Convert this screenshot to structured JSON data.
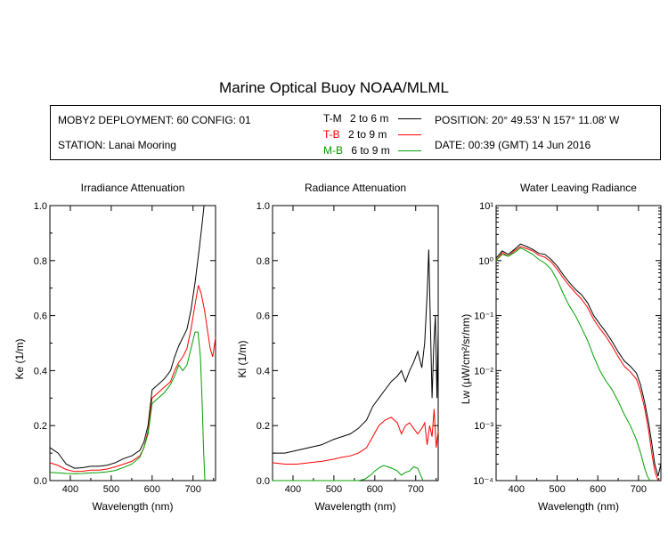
{
  "figure": {
    "title": "Marine Optical Buoy NOAA/MLML",
    "info": {
      "deployment": "MOBY2 DEPLOYMENT: 60 CONFIG: 01",
      "station": "STATION: Lanai Mooring",
      "position": "POSITION: 20° 49.53' N   157° 11.08' W",
      "date": "DATE: 00:39 (GMT) 14 Jun 2016"
    },
    "legend": [
      {
        "label": "T-M",
        "depth": "2 to 6  m",
        "color": "#000000"
      },
      {
        "label": "T-B",
        "depth": "2 to 9  m",
        "color": "#ff0000"
      },
      {
        "label": "M-B",
        "depth": "6 to 9  m",
        "color": "#00a000"
      }
    ]
  },
  "chart_data": [
    {
      "type": "line",
      "title": "Irradiance Attenuation",
      "xlabel": "Wavelength (nm)",
      "ylabel": "Ke  (1/m)",
      "xlim": [
        350,
        755
      ],
      "ylim": [
        0,
        1.0
      ],
      "xticks": [
        400,
        500,
        600,
        700
      ],
      "yticks": [
        0.0,
        0.2,
        0.4,
        0.6,
        0.8,
        1.0
      ],
      "ytick_labels": [
        "0.0",
        "0.2",
        "0.4",
        "0.6",
        "0.8",
        "1.0"
      ],
      "series": [
        {
          "name": "T-M",
          "color": "#000000",
          "x": [
            350,
            370,
            390,
            410,
            430,
            450,
            470,
            490,
            510,
            530,
            550,
            570,
            580,
            590,
            600,
            615,
            630,
            645,
            655,
            665,
            675,
            685,
            695,
            705,
            715,
            722,
            727
          ],
          "y": [
            0.12,
            0.1,
            0.06,
            0.045,
            0.047,
            0.052,
            0.052,
            0.056,
            0.065,
            0.08,
            0.09,
            0.11,
            0.14,
            0.2,
            0.33,
            0.35,
            0.37,
            0.4,
            0.45,
            0.49,
            0.52,
            0.55,
            0.62,
            0.72,
            0.84,
            0.93,
            1.0
          ]
        },
        {
          "name": "T-B",
          "color": "#ff0000",
          "x": [
            350,
            370,
            390,
            410,
            430,
            450,
            470,
            490,
            510,
            530,
            550,
            570,
            580,
            590,
            600,
            615,
            630,
            645,
            655,
            665,
            675,
            685,
            695,
            705,
            713,
            720,
            728,
            735,
            742,
            748,
            755
          ],
          "y": [
            0.065,
            0.055,
            0.04,
            0.033,
            0.034,
            0.038,
            0.038,
            0.042,
            0.05,
            0.06,
            0.07,
            0.09,
            0.12,
            0.18,
            0.3,
            0.32,
            0.34,
            0.36,
            0.4,
            0.43,
            0.45,
            0.48,
            0.55,
            0.64,
            0.71,
            0.68,
            0.62,
            0.55,
            0.48,
            0.45,
            0.52
          ]
        },
        {
          "name": "M-B",
          "color": "#00a000",
          "x": [
            350,
            370,
            390,
            410,
            430,
            450,
            470,
            490,
            510,
            530,
            550,
            570,
            580,
            590,
            600,
            615,
            630,
            645,
            655,
            665,
            675,
            685,
            695,
            705,
            712,
            718,
            722,
            726,
            729
          ],
          "y": [
            0.03,
            0.028,
            0.026,
            0.025,
            0.026,
            0.028,
            0.029,
            0.032,
            0.037,
            0.048,
            0.06,
            0.085,
            0.12,
            0.17,
            0.28,
            0.3,
            0.32,
            0.35,
            0.38,
            0.42,
            0.4,
            0.42,
            0.48,
            0.54,
            0.54,
            0.45,
            0.3,
            0.1,
            0.0
          ]
        }
      ]
    },
    {
      "type": "line",
      "title": "Radiance Attenuation",
      "xlabel": "Wavelength (nm)",
      "ylabel": "Kl  (1/m)",
      "xlim": [
        350,
        755
      ],
      "ylim": [
        0,
        1.0
      ],
      "xticks": [
        400,
        500,
        600,
        700
      ],
      "yticks": [
        0.0,
        0.2,
        0.4,
        0.6,
        0.8,
        1.0
      ],
      "ytick_labels": [
        "0.0",
        "0.2",
        "0.4",
        "0.6",
        "0.8",
        "1.0"
      ],
      "series": [
        {
          "name": "T-M",
          "color": "#000000",
          "x": [
            350,
            380,
            410,
            440,
            470,
            500,
            520,
            540,
            560,
            580,
            595,
            610,
            625,
            640,
            655,
            665,
            675,
            685,
            695,
            705,
            715,
            722,
            728,
            732,
            736,
            740,
            744,
            748,
            752,
            755
          ],
          "y": [
            0.1,
            0.1,
            0.11,
            0.12,
            0.13,
            0.15,
            0.16,
            0.17,
            0.19,
            0.22,
            0.27,
            0.3,
            0.33,
            0.36,
            0.38,
            0.4,
            0.36,
            0.4,
            0.43,
            0.47,
            0.41,
            0.5,
            0.68,
            0.84,
            0.56,
            0.3,
            0.48,
            0.6,
            0.3,
            0.55
          ]
        },
        {
          "name": "T-B",
          "color": "#ff0000",
          "x": [
            350,
            380,
            410,
            440,
            470,
            500,
            520,
            540,
            560,
            580,
            595,
            610,
            625,
            640,
            655,
            665,
            675,
            685,
            695,
            705,
            715,
            722,
            728,
            734,
            740,
            745,
            750,
            755
          ],
          "y": [
            0.065,
            0.06,
            0.06,
            0.065,
            0.07,
            0.078,
            0.085,
            0.09,
            0.1,
            0.12,
            0.16,
            0.2,
            0.22,
            0.23,
            0.21,
            0.17,
            0.2,
            0.21,
            0.19,
            0.17,
            0.19,
            0.21,
            0.13,
            0.2,
            0.16,
            0.26,
            0.12,
            0.18
          ]
        },
        {
          "name": "M-B",
          "color": "#00a000",
          "x": [
            350,
            380,
            410,
            440,
            470,
            500,
            520,
            540,
            560,
            575,
            590,
            600,
            612,
            622,
            632,
            642,
            655,
            665,
            675,
            685,
            695,
            705,
            712,
            718
          ],
          "y": [
            0.0,
            0.0,
            0.0,
            0.0,
            0.0,
            0.0,
            0.0,
            0.0,
            0.0,
            0.005,
            0.02,
            0.035,
            0.048,
            0.055,
            0.05,
            0.045,
            0.035,
            0.02,
            0.03,
            0.035,
            0.05,
            0.045,
            0.02,
            0.0
          ]
        }
      ]
    },
    {
      "type": "line",
      "title": "Water Leaving Radiance",
      "xlabel": "Wavelength (nm)",
      "ylabel": "Lw  (µW/cm²/sr/nm)",
      "yscale": "log",
      "xlim": [
        350,
        755
      ],
      "ylim": [
        0.0001,
        10
      ],
      "xticks": [
        400,
        500,
        600,
        700
      ],
      "yticks": [
        0.0001,
        0.001,
        0.01,
        0.1,
        1,
        10
      ],
      "ytick_labels": [
        "10⁻⁴",
        "10⁻³",
        "10⁻²",
        "10⁻¹",
        "10⁰",
        "10¹"
      ],
      "series": [
        {
          "name": "T-M",
          "color": "#000000",
          "x": [
            350,
            365,
            380,
            395,
            410,
            425,
            440,
            455,
            470,
            485,
            500,
            515,
            530,
            545,
            560,
            575,
            590,
            605,
            620,
            635,
            650,
            665,
            680,
            695,
            705,
            715,
            725,
            733,
            740,
            748,
            755
          ],
          "y": [
            1.1,
            1.5,
            1.3,
            1.6,
            2.0,
            1.8,
            1.6,
            1.35,
            1.3,
            1.05,
            0.8,
            0.55,
            0.4,
            0.3,
            0.24,
            0.17,
            0.1,
            0.07,
            0.05,
            0.034,
            0.022,
            0.015,
            0.012,
            0.009,
            0.0055,
            0.0027,
            0.0011,
            0.00045,
            0.0002,
            0.00012,
            0.0002
          ]
        },
        {
          "name": "T-B",
          "color": "#ff0000",
          "x": [
            350,
            365,
            380,
            395,
            410,
            425,
            440,
            455,
            470,
            485,
            500,
            515,
            530,
            545,
            560,
            575,
            590,
            605,
            620,
            635,
            650,
            665,
            680,
            695,
            705,
            715,
            725,
            733,
            740,
            748
          ],
          "y": [
            1.0,
            1.4,
            1.2,
            1.5,
            1.8,
            1.65,
            1.5,
            1.25,
            1.15,
            0.95,
            0.7,
            0.48,
            0.35,
            0.26,
            0.2,
            0.14,
            0.085,
            0.058,
            0.042,
            0.028,
            0.018,
            0.012,
            0.0095,
            0.007,
            0.0042,
            0.0021,
            0.0008,
            0.0003,
            0.00015,
            0.0001
          ]
        },
        {
          "name": "M-B",
          "color": "#00a000",
          "x": [
            350,
            365,
            380,
            395,
            410,
            425,
            440,
            455,
            470,
            485,
            500,
            515,
            530,
            545,
            560,
            575,
            590,
            605,
            620,
            635,
            650,
            665,
            680,
            695,
            705,
            715,
            722,
            728
          ],
          "y": [
            1.0,
            1.3,
            1.2,
            1.4,
            1.7,
            1.5,
            1.3,
            1.05,
            0.9,
            0.7,
            0.45,
            0.25,
            0.15,
            0.1,
            0.06,
            0.035,
            0.018,
            0.01,
            0.0065,
            0.0045,
            0.0028,
            0.0016,
            0.001,
            0.00055,
            0.00032,
            0.00017,
            0.00012,
            0.0001
          ]
        }
      ]
    }
  ]
}
